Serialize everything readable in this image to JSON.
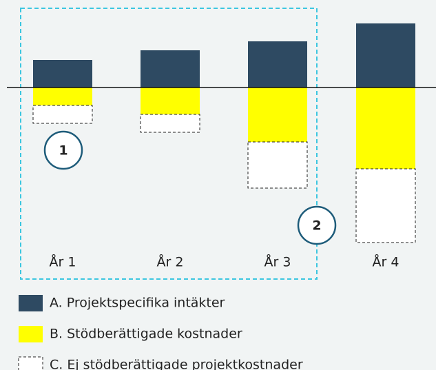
{
  "chart_data": {
    "type": "stacked-bar",
    "categories": [
      "År 1",
      "År 2",
      "År 3",
      "År 4"
    ],
    "series": [
      {
        "name": "A. Projektspecifika intäkter",
        "color": "#2e4a62",
        "values": [
          40,
          54,
          67,
          93
        ]
      },
      {
        "name": "B. Stödberättigade kostnader",
        "color": "#ffff00",
        "values": [
          -26,
          -39,
          -79,
          -118
        ]
      },
      {
        "name": "C. Ej stödberättigade projektkostnader",
        "color": "#ffffff",
        "values": [
          -26,
          -26,
          -67,
          -107
        ]
      }
    ],
    "ylim": [
      -250,
      127
    ],
    "annotations": [
      "1",
      "2"
    ]
  }
}
